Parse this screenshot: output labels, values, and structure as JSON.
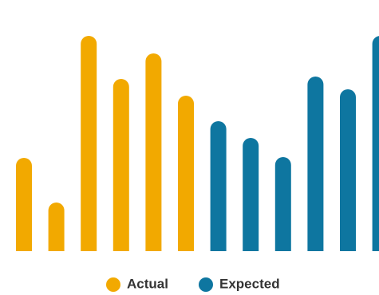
{
  "chart_data": {
    "type": "bar",
    "categories": [
      null,
      null,
      null,
      null,
      null,
      null,
      null,
      null,
      null,
      null,
      null,
      null
    ],
    "series": [
      {
        "name": "Actual",
        "color": "#f2a900",
        "values": [
          117,
          61,
          270,
          216,
          248,
          195,
          null,
          null,
          null,
          null,
          null,
          null
        ]
      },
      {
        "name": "Expected",
        "color": "#0e76a0",
        "values": [
          null,
          null,
          null,
          null,
          null,
          null,
          163,
          142,
          118,
          219,
          203,
          270
        ]
      }
    ],
    "legend": "bottom"
  }
}
